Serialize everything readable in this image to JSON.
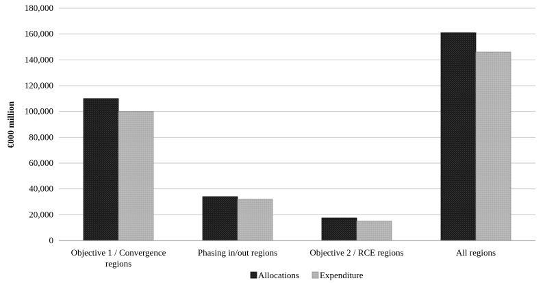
{
  "chart_data": {
    "type": "bar",
    "ylabel": "€000 million",
    "xlabel": "",
    "title": "",
    "ylim": [
      0,
      180000
    ],
    "yticks": [
      0,
      20000,
      40000,
      60000,
      80000,
      100000,
      120000,
      140000,
      160000,
      180000
    ],
    "ytick_labels": [
      "0",
      "20,000",
      "40,000",
      "60,000",
      "80,000",
      "100,000",
      "120,000",
      "140,000",
      "160,000",
      "180,000"
    ],
    "grid": true,
    "legend_position": "bottom",
    "categories": [
      [
        "Objective 1 / Convergence",
        "regions"
      ],
      [
        "Phasing in/out regions"
      ],
      [
        "Objective 2 / RCE regions"
      ],
      [
        "All regions"
      ]
    ],
    "series": [
      {
        "name": "Allocations",
        "color": "#1e1e1e",
        "values": [
          110000,
          34000,
          17500,
          161000
        ]
      },
      {
        "name": "Expenditure",
        "color": "#b2b2b2",
        "values": [
          100000,
          32000,
          15000,
          146000
        ]
      }
    ]
  }
}
